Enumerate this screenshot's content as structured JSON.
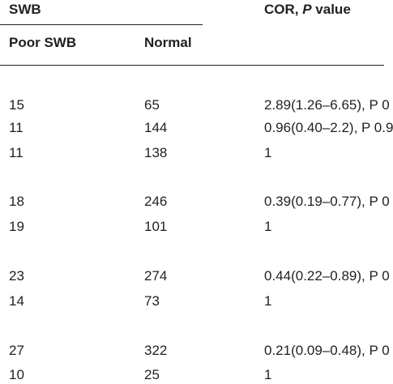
{
  "header": {
    "group_label": "SWB",
    "cor_label": "COR, ",
    "cor_p": "P",
    "cor_value": " value",
    "col_poor": "Poor SWB",
    "col_normal": "Normal"
  },
  "rows": [
    {
      "poor": "15",
      "normal": "65",
      "cor": "2.89(1.26–6.65), P 0"
    },
    {
      "poor": "11",
      "normal": "144",
      "cor": "0.96(0.40–2.2), P 0.9"
    },
    {
      "poor": "11",
      "normal": "138",
      "cor": "1"
    },
    {
      "poor": "18",
      "normal": "246",
      "cor": "0.39(0.19–0.77), P 0"
    },
    {
      "poor": "19",
      "normal": "101",
      "cor": "1"
    },
    {
      "poor": "23",
      "normal": "274",
      "cor": "0.44(0.22–0.89), P 0"
    },
    {
      "poor": "14",
      "normal": "73",
      "cor": "1"
    },
    {
      "poor": "27",
      "normal": "322",
      "cor": "0.21(0.09–0.48), P 0"
    },
    {
      "poor": "10",
      "normal": "25",
      "cor": "1"
    }
  ]
}
